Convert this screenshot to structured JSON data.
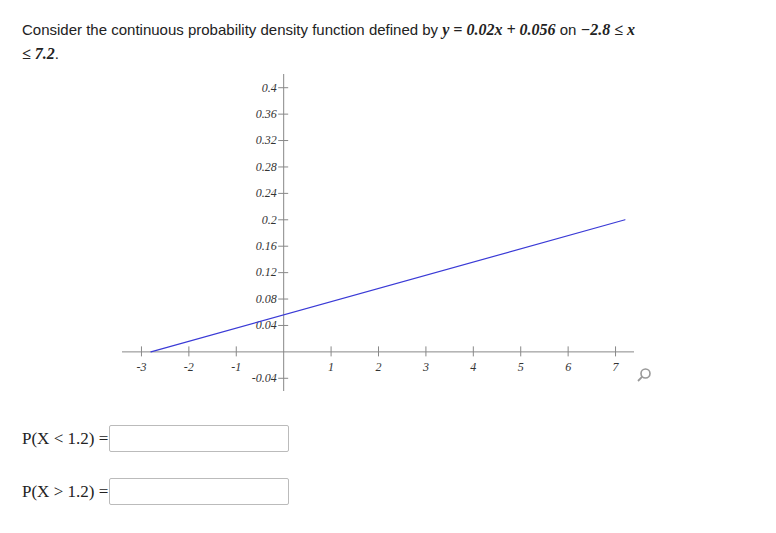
{
  "question": [
    "Consider the continuous probability density function defined by ",
    "y = 0.02x + 0.056",
    " on ",
    "−2.8 ≤ x ≤ 7.2",
    "."
  ],
  "chart_data": {
    "type": "line",
    "x": [
      -2.8,
      7.2
    ],
    "series": [
      {
        "values": [
          0,
          0.2
        ],
        "color": "#3a3ad6"
      }
    ],
    "xlim": [
      -3.4,
      7.4
    ],
    "ylim": [
      -0.06,
      0.42
    ],
    "xticks": [
      -3,
      -2,
      -1,
      1,
      2,
      3,
      4,
      5,
      6,
      7
    ],
    "yticks": [
      -0.04,
      0.04,
      0.08,
      0.12,
      0.16,
      0.2,
      0.24,
      0.28,
      0.32,
      0.36,
      0.4
    ],
    "grid": false
  },
  "answers": [
    {
      "label": "P(X < 1.2) ="
    },
    {
      "label": "P(X > 1.2) ="
    }
  ]
}
